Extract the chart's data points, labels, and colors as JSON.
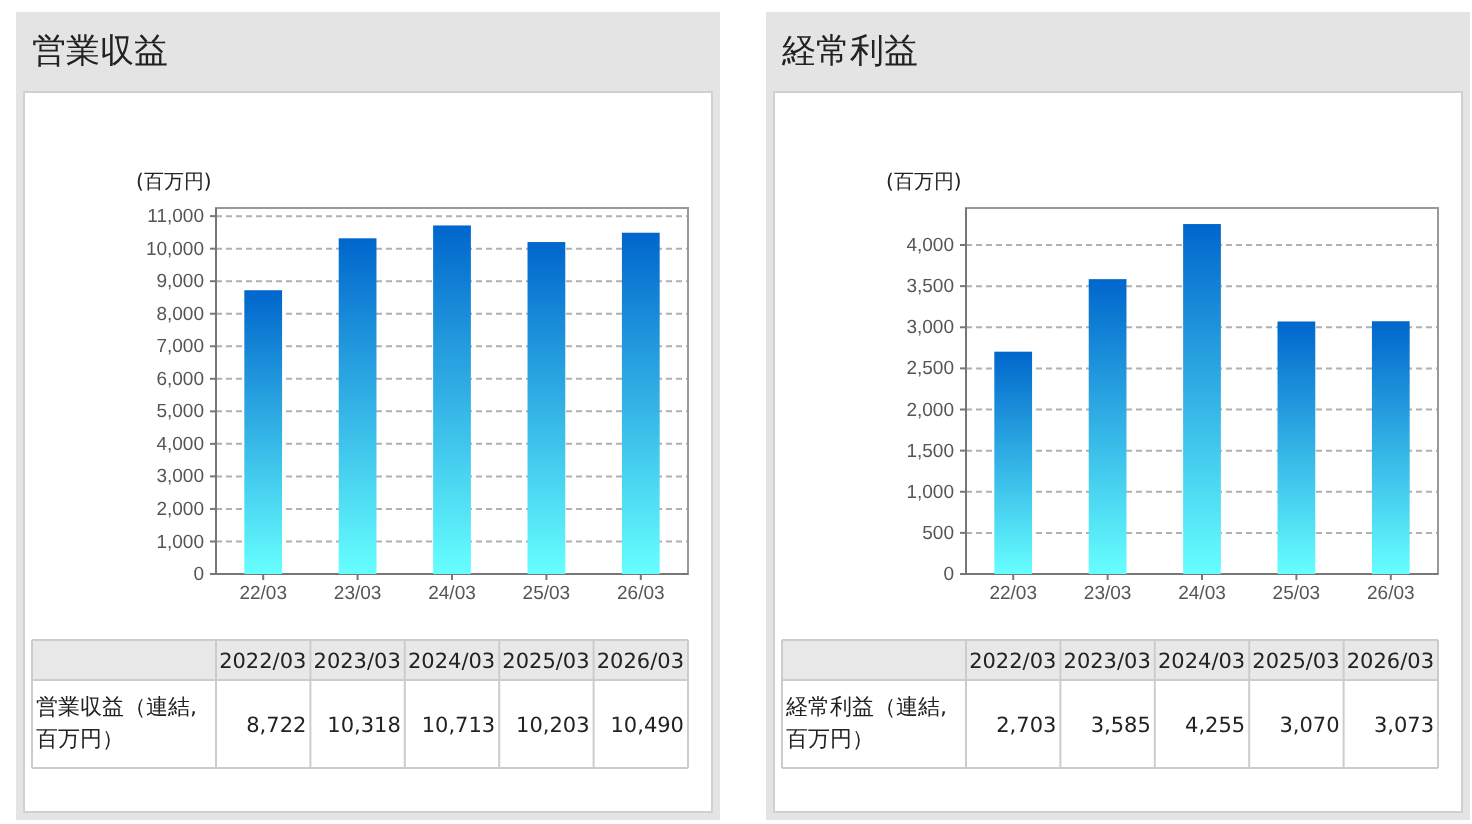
{
  "chart_data": [
    {
      "type": "bar",
      "title": "営業収益",
      "ylabel": "(百万円)",
      "categories": [
        "22/03",
        "23/03",
        "24/03",
        "25/03",
        "26/03"
      ],
      "series": [
        {
          "color": "#0066cc",
          "values": [
            8722,
            10318,
            10713,
            10203,
            10490
          ],
          "value_labels": [
            "8,722",
            "10,318",
            "10,713",
            "10,203",
            "10,490"
          ]
        }
      ],
      "ylim": [
        0,
        11250
      ],
      "yticks": [
        {
          "value": 0,
          "label": "0"
        },
        {
          "value": 1000,
          "label": "1,000"
        },
        {
          "value": 2000,
          "label": "2,000"
        },
        {
          "value": 3000,
          "label": "3,000"
        },
        {
          "value": 4000,
          "label": "4,000"
        },
        {
          "value": 5000,
          "label": "5,000"
        },
        {
          "value": 6000,
          "label": "6,000"
        },
        {
          "value": 7000,
          "label": "7,000"
        },
        {
          "value": 8000,
          "label": "8,000"
        },
        {
          "value": 9000,
          "label": "9,000"
        },
        {
          "value": 10000,
          "label": "10,000"
        },
        {
          "value": 11000,
          "label": "11,000"
        }
      ],
      "grid": "y",
      "annotations": [
        "2022/03",
        "2023/03",
        "2024/03",
        "2025/03",
        "2026/03",
        "営業収益（連結, 百万円）"
      ]
    },
    {
      "type": "bar",
      "title": "経常利益",
      "ylabel": "(百万円)",
      "categories": [
        "22/03",
        "23/03",
        "24/03",
        "25/03",
        "26/03"
      ],
      "series": [
        {
          "color": "#0066cc",
          "values": [
            2703,
            3585,
            4255,
            3070,
            3073
          ],
          "value_labels": [
            "2,703",
            "3,585",
            "4,255",
            "3,070",
            "3,073"
          ]
        }
      ],
      "ylim": [
        0,
        4450
      ],
      "yticks": [
        {
          "value": 0,
          "label": "0"
        },
        {
          "value": 500,
          "label": "500"
        },
        {
          "value": 1000,
          "label": "1,000"
        },
        {
          "value": 1500,
          "label": "1,500"
        },
        {
          "value": 2000,
          "label": "2,000"
        },
        {
          "value": 2500,
          "label": "2,500"
        },
        {
          "value": 3000,
          "label": "3,000"
        },
        {
          "value": 3500,
          "label": "3,500"
        },
        {
          "value": 4000,
          "label": "4,000"
        }
      ],
      "grid": "y",
      "annotations": [
        "2022/03",
        "2023/03",
        "2024/03",
        "2025/03",
        "2026/03",
        "経常利益（連結, 百万円）"
      ]
    }
  ]
}
